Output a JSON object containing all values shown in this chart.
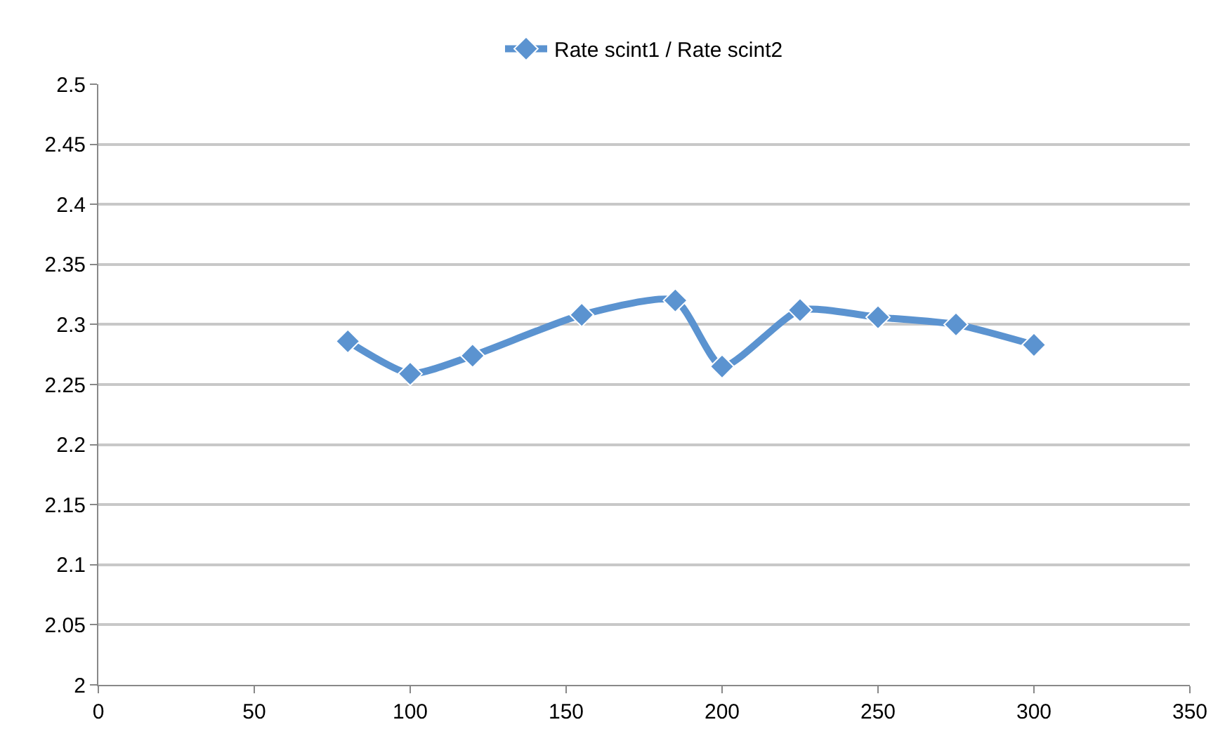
{
  "chart_data": {
    "type": "line",
    "x": [
      80,
      100,
      120,
      155,
      185,
      200,
      225,
      250,
      275,
      300
    ],
    "series": [
      {
        "name": "Rate scint1 / Rate scint2",
        "color": "#5b93d0",
        "values": [
          2.286,
          2.259,
          2.274,
          2.308,
          2.32,
          2.265,
          2.312,
          2.306,
          2.3,
          2.283
        ]
      }
    ],
    "xlim": [
      0,
      350
    ],
    "xticks": [
      0,
      50,
      100,
      150,
      200,
      250,
      300,
      350
    ],
    "ylim": [
      2,
      2.5
    ],
    "yticks": [
      2,
      2.05,
      2.1,
      2.15,
      2.2,
      2.25,
      2.3,
      2.35,
      2.4,
      2.45,
      2.5
    ],
    "grid": "y",
    "legend": "top",
    "marker": "diamond",
    "line_style": "solid"
  }
}
